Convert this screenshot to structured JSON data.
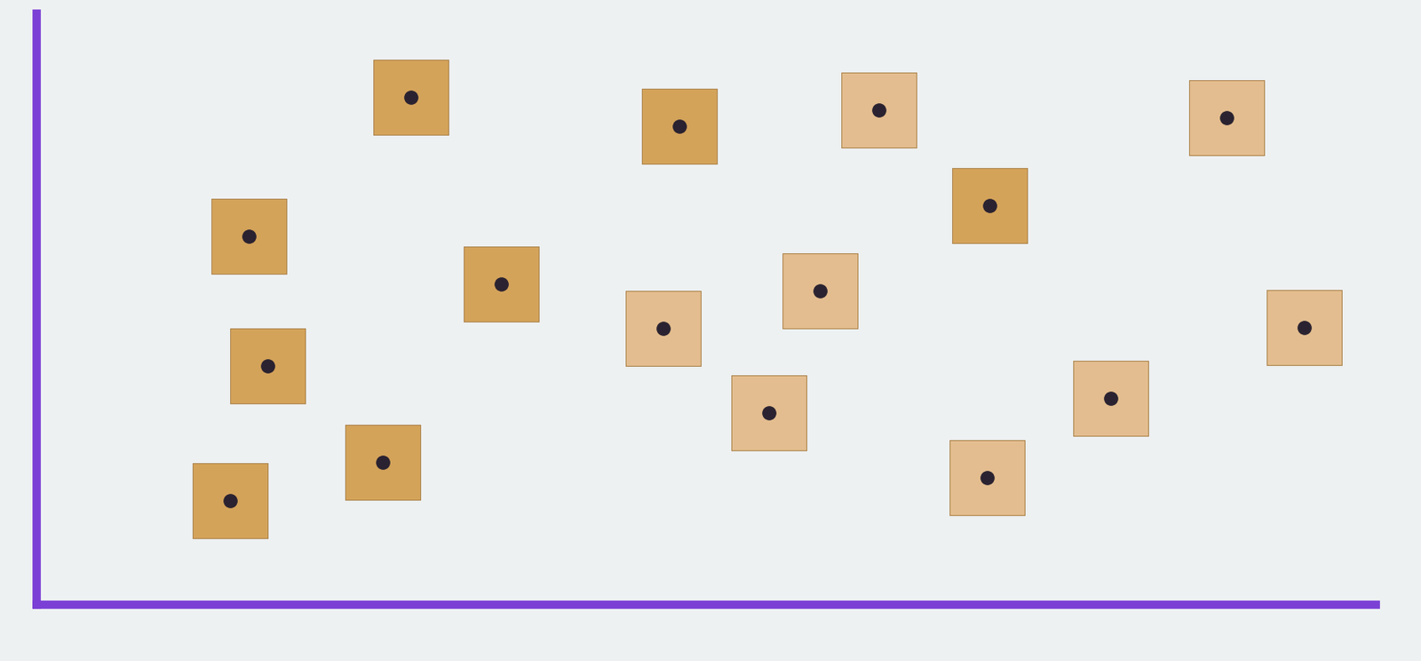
{
  "chart_data": {
    "type": "scatter",
    "xlim": [
      0,
      100
    ],
    "ylim": [
      0,
      100
    ],
    "tick_labels": false,
    "grid": false,
    "series": [
      {
        "color": "#d4a35a",
        "marker": "square",
        "x": [
          28.0,
          48.0,
          71.2,
          15.9,
          34.7,
          17.3,
          25.9,
          14.5
        ],
        "y": [
          85.9,
          81.0,
          67.5,
          62.3,
          54.3,
          40.5,
          24.1,
          17.6
        ]
      },
      {
        "color": "#e3bd8f",
        "marker": "square",
        "x": [
          62.9,
          88.9,
          46.8,
          58.5,
          54.7,
          94.7,
          80.2,
          71.0
        ],
        "y": [
          83.7,
          82.5,
          46.8,
          53.1,
          32.5,
          46.9,
          35.0,
          21.5
        ]
      }
    ]
  }
}
